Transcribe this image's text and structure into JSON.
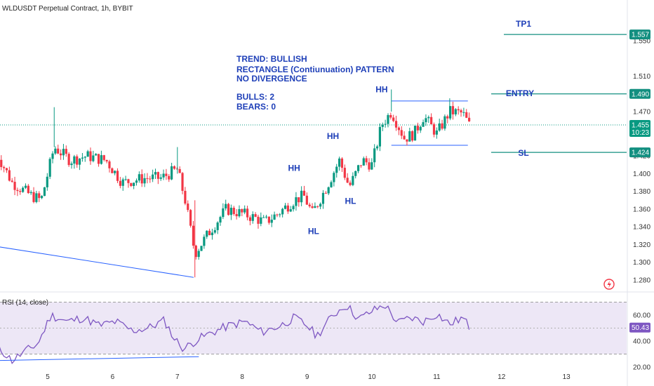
{
  "header": {
    "title": "WLDUSDT Perpetual Contract, 1h, BYBIT"
  },
  "colors": {
    "up": "#089981",
    "down": "#f23645",
    "annotation": "#1e3fb8",
    "level": "#138f80",
    "rsi": "#7e57c2",
    "rsi_band": "#ede7f6",
    "trendline": "#2962ff"
  },
  "notes": {
    "trend": "TREND: BULLISH",
    "pattern": "RECTANGLE (Contiunuation) PATTERN",
    "divergence": "NO DIVERGENCE",
    "bulls": "BULLS: 2",
    "bears": "BEARS: 0"
  },
  "levels": [
    {
      "label": "TP1",
      "value": 1.557,
      "badge": "1.557"
    },
    {
      "label": "ENTRY",
      "value": 1.49,
      "badge": "1.490"
    },
    {
      "label": "SL",
      "value": 1.424,
      "badge": "1.424"
    }
  ],
  "current_price": {
    "value": 1.455,
    "badge": "1.455",
    "countdown": "10:23"
  },
  "rsi_panel": {
    "title": "RSI (14, close)",
    "value": 50.43,
    "badge": "50.43",
    "upper": 70,
    "lower": 30
  },
  "chart_data": [
    {
      "type": "candlestick",
      "title": "WLDUSDT Perpetual Contract, 1h, BYBIT",
      "x_ticks": [
        "5",
        "6",
        "7",
        "8",
        "9",
        "10",
        "11",
        "12",
        "13"
      ],
      "y_ticks": [
        "1.280",
        "1.300",
        "1.320",
        "1.340",
        "1.360",
        "1.380",
        "1.400",
        "1.420",
        "1.470",
        "1.510",
        "1.550"
      ],
      "ylim": [
        1.265,
        1.575
      ],
      "swing_labels": [
        {
          "text": "HL",
          "day": 9.1,
          "price": 1.332
        },
        {
          "text": "HH",
          "day": 8.8,
          "price": 1.403
        },
        {
          "text": "HL",
          "day": 9.67,
          "price": 1.366
        },
        {
          "text": "HH",
          "day": 9.4,
          "price": 1.439
        },
        {
          "text": "HH",
          "day": 10.15,
          "price": 1.492
        }
      ],
      "rectangle": {
        "top": 1.482,
        "bottom": 1.432,
        "from_day": 10.3,
        "to_day": 11.48
      },
      "trendline": {
        "from": {
          "day": 4.2,
          "price": 1.318
        },
        "to": {
          "day": 7.25,
          "price": 1.283
        }
      },
      "anchors": [
        {
          "day": 4.2,
          "price": 1.425
        },
        {
          "day": 4.45,
          "price": 1.39
        },
        {
          "day": 4.75,
          "price": 1.375
        },
        {
          "day": 4.9,
          "price": 1.37
        },
        {
          "day": 5.1,
          "price": 1.43
        },
        {
          "day": 5.35,
          "price": 1.415
        },
        {
          "day": 5.6,
          "price": 1.42
        },
        {
          "day": 5.9,
          "price": 1.415
        },
        {
          "day": 6.15,
          "price": 1.39
        },
        {
          "day": 6.5,
          "price": 1.395
        },
        {
          "day": 6.75,
          "price": 1.395
        },
        {
          "day": 7.0,
          "price": 1.405
        },
        {
          "day": 7.12,
          "price": 1.37
        },
        {
          "day": 7.27,
          "price": 1.31
        },
        {
          "day": 7.5,
          "price": 1.335
        },
        {
          "day": 7.75,
          "price": 1.36
        },
        {
          "day": 8.0,
          "price": 1.355
        },
        {
          "day": 8.2,
          "price": 1.35
        },
        {
          "day": 8.35,
          "price": 1.345
        },
        {
          "day": 8.55,
          "price": 1.355
        },
        {
          "day": 8.8,
          "price": 1.37
        },
        {
          "day": 8.95,
          "price": 1.375
        },
        {
          "day": 9.08,
          "price": 1.355
        },
        {
          "day": 9.3,
          "price": 1.385
        },
        {
          "day": 9.5,
          "price": 1.415
        },
        {
          "day": 9.65,
          "price": 1.385
        },
        {
          "day": 9.85,
          "price": 1.415
        },
        {
          "day": 10.0,
          "price": 1.41
        },
        {
          "day": 10.15,
          "price": 1.455
        },
        {
          "day": 10.3,
          "price": 1.47
        },
        {
          "day": 10.5,
          "price": 1.44
        },
        {
          "day": 10.65,
          "price": 1.445
        },
        {
          "day": 10.8,
          "price": 1.465
        },
        {
          "day": 11.0,
          "price": 1.445
        },
        {
          "day": 11.2,
          "price": 1.47
        },
        {
          "day": 11.4,
          "price": 1.468
        },
        {
          "day": 11.5,
          "price": 1.455
        }
      ]
    },
    {
      "type": "line",
      "title": "RSI (14, close)",
      "y_ticks": [
        "60.00",
        "40.00",
        "20.00"
      ],
      "ylim": [
        18,
        77
      ],
      "series": [
        {
          "name": "RSI (14, close)",
          "x": [
            4.2,
            4.45,
            4.65,
            4.85,
            5.05,
            5.3,
            5.55,
            5.8,
            6.05,
            6.3,
            6.55,
            6.8,
            6.95,
            7.1,
            7.3,
            7.55,
            7.8,
            8.05,
            8.3,
            8.6,
            8.8,
            9.0,
            9.15,
            9.4,
            9.6,
            9.8,
            10.0,
            10.2,
            10.4,
            10.6,
            10.8,
            11.0,
            11.2,
            11.4,
            11.5
          ],
          "values": [
            37,
            25,
            32,
            38,
            60,
            55,
            58,
            52,
            55,
            48,
            50,
            56,
            42,
            34,
            41,
            47,
            52,
            55,
            47,
            52,
            58,
            52,
            44,
            60,
            68,
            57,
            63,
            68,
            54,
            58,
            55,
            61,
            53,
            58,
            51
          ]
        }
      ],
      "trendline": {
        "from": {
          "day": 4.2,
          "value": 25
        },
        "to": {
          "day": 7.33,
          "value": 28
        }
      }
    }
  ]
}
